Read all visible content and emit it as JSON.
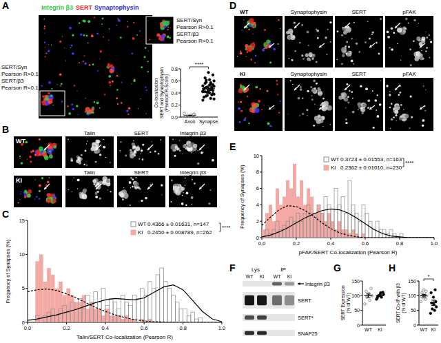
{
  "panels": {
    "labels": [
      "A",
      "B",
      "C",
      "D",
      "E",
      "F",
      "G",
      "H"
    ]
  },
  "panel_a": {
    "legend": [
      {
        "text": "Integrin β3",
        "color": "#2ecc40"
      },
      {
        "text": "SERT",
        "color": "#e8231f"
      },
      {
        "text": "Synaptophysin",
        "color": "#2b2bd6"
      }
    ],
    "inset_right": [
      "SERT/Syn",
      "Pearson R>0.1",
      "SERT/β3",
      "Pearson R>0.1"
    ],
    "inset_left": [
      "SERT/Syn",
      "Pearson R>0.1",
      "SERT/β3",
      "Pearson R<0.1"
    ]
  },
  "panel_b": {
    "rows": [
      "WT",
      "KI"
    ],
    "columns": [
      "Talin",
      "SERT",
      "Integrin β3"
    ]
  },
  "panel_d": {
    "rows": [
      "WT",
      "KI"
    ],
    "columns": [
      "Synaptophysin",
      "SERT",
      "pFAK"
    ]
  },
  "panel_f": {
    "groups": [
      "Lys",
      "IP"
    ],
    "lanes": [
      "WT",
      "KI",
      "WT",
      "KI"
    ],
    "bands": [
      "Integrin β3",
      "SERT",
      "SERT*",
      "SNAP25"
    ]
  },
  "chart_data": [
    {
      "type": "strip",
      "categories": [
        "Axon",
        "Synapse"
      ],
      "values": [
        [
          0.0,
          0.01,
          0.02,
          0.0,
          0.03,
          0.01,
          0.05,
          0.02,
          0.0,
          0.04,
          0.01,
          0.06,
          0.02,
          0.03,
          0.0,
          0.01
        ],
        [
          0.28,
          0.31,
          0.35,
          0.38,
          0.4,
          0.42,
          0.44,
          0.45,
          0.47,
          0.48,
          0.5,
          0.52,
          0.55,
          0.58,
          0.6,
          0.62,
          0.65,
          0.7,
          0.74,
          0.33,
          0.37,
          0.41,
          0.43,
          0.46,
          0.49,
          0.51,
          0.53,
          0.56,
          0.39,
          0.44,
          0.47,
          0.5,
          0.36,
          0.42,
          0.57,
          0.61,
          0.3,
          0.45,
          0.48,
          0.54
        ]
      ],
      "mean": [
        0.02,
        0.47
      ],
      "error": [
        0.005,
        0.02
      ],
      "y_label": [
        "Co-localization",
        "SERT and Synaptophysin",
        "(Pearson R-Score)"
      ],
      "ylim": [
        0,
        0.8
      ],
      "yticks": [
        {
          "value": 0,
          "label": "0.0"
        },
        {
          "value": 0.2,
          "label": "0.2"
        },
        {
          "value": 0.4,
          "label": "0.4"
        },
        {
          "value": 0.6,
          "label": "0.6"
        },
        {
          "value": 0.8,
          "label": "0.8"
        }
      ],
      "annotation": "****"
    },
    {
      "type": "histogram",
      "bins": [
        0.04,
        0.06,
        0.08,
        0.1,
        0.12,
        0.14,
        0.16,
        0.18,
        0.2,
        0.22,
        0.24,
        0.26,
        0.28,
        0.3,
        0.32,
        0.34,
        0.36,
        0.38,
        0.4,
        0.42,
        0.44,
        0.46,
        0.48,
        0.5,
        0.52,
        0.54,
        0.56,
        0.58,
        0.6,
        0.62,
        0.64,
        0.66,
        0.68,
        0.7,
        0.72,
        0.74,
        0.76,
        0.78,
        0.8,
        0.82,
        0.84,
        0.86,
        0.88,
        0.9
      ],
      "series": [
        {
          "name": "WT",
          "color": "#8c8c8c",
          "values": [
            1,
            0,
            1,
            1.5,
            2,
            1,
            2,
            2.5,
            1.5,
            3,
            2,
            3.5,
            2,
            4,
            3,
            4.5,
            3,
            5,
            2.5,
            3.5,
            3,
            2,
            4,
            3,
            2.5,
            4,
            3.5,
            5,
            4,
            6,
            5,
            7,
            8,
            6,
            5,
            4,
            3,
            2,
            2,
            1,
            1.5,
            0.5,
            0.7
          ],
          "stats": "0.4366 ± 0.01631, n=147",
          "fit": {
            "x": [
              0,
              0.05,
              0.1,
              0.15,
              0.2,
              0.25,
              0.3,
              0.35,
              0.4,
              0.45,
              0.5,
              0.55,
              0.6,
              0.65,
              0.7,
              0.75,
              0.8,
              0.85,
              0.9,
              0.95,
              1
            ],
            "values": [
              0.3,
              0.5,
              0.8,
              1.1,
              1.5,
              1.9,
              2.4,
              2.9,
              3.3,
              3.5,
              3.4,
              3.3,
              3.6,
              4.4,
              5.2,
              5.5,
              4.8,
              3.2,
              1.6,
              0.5,
              0.1
            ],
            "line_style": "solid"
          }
        },
        {
          "name": "KI",
          "color": "#f4a9a4",
          "values": [
            9,
            10,
            6,
            8,
            7,
            5,
            6,
            4,
            5,
            4,
            3,
            3,
            4,
            2,
            3,
            2,
            2,
            1,
            2,
            1,
            1,
            1,
            0.5,
            1,
            0.5,
            0.5,
            0,
            0.5,
            0,
            0.5,
            0,
            0,
            0,
            0,
            0,
            0,
            0,
            0,
            0,
            0,
            0,
            0,
            0
          ],
          "stats": "0.2450 ± 0.008789, n=262",
          "fit": {
            "x": [
              0,
              0.05,
              0.1,
              0.15,
              0.2,
              0.25,
              0.3,
              0.35,
              0.4,
              0.45,
              0.5,
              0.55,
              0.6,
              0.65,
              0.7,
              0.75,
              0.8,
              0.85,
              0.9,
              0.95,
              1
            ],
            "values": [
              4.5,
              4.8,
              4.9,
              4.7,
              4.2,
              3.6,
              2.9,
              2.2,
              1.6,
              1.1,
              0.7,
              0.4,
              0.2,
              0.1,
              0.05,
              0,
              0,
              0,
              0,
              0,
              0
            ],
            "line_style": "dashed"
          }
        }
      ],
      "x_label": "Talin/SERT Co-localization (Pearson R)",
      "y_label": "Frequency of Synapses (%)",
      "xlim": [
        0,
        1
      ],
      "xticks": [
        {
          "value": 0,
          "label": "0.0"
        },
        {
          "value": 0.2,
          "label": "0.2"
        },
        {
          "value": 0.4,
          "label": "0.4"
        },
        {
          "value": 0.6,
          "label": "0.6"
        },
        {
          "value": 0.8,
          "label": "0.8"
        },
        {
          "value": 1,
          "label": "1.0"
        }
      ],
      "ylim": [
        0,
        15
      ],
      "yticks": [
        0,
        5,
        10,
        15
      ],
      "annotation": "****"
    },
    {
      "type": "histogram",
      "bins": [
        0,
        0.02,
        0.04,
        0.06,
        0.08,
        0.1,
        0.12,
        0.14,
        0.16,
        0.18,
        0.2,
        0.22,
        0.24,
        0.26,
        0.28,
        0.3,
        0.32,
        0.34,
        0.36,
        0.38,
        0.4,
        0.42,
        0.44,
        0.46,
        0.48,
        0.5,
        0.52,
        0.54,
        0.56,
        0.58,
        0.6,
        0.62,
        0.64,
        0.66,
        0.68,
        0.7,
        0.72,
        0.74,
        0.76,
        0.78,
        0.8,
        0.82,
        0.84
      ],
      "series": [
        {
          "name": "WT",
          "color": "#8c8c8c",
          "values": [
            0,
            1,
            0.5,
            1,
            2,
            1,
            1.5,
            2,
            2.5,
            2,
            3,
            2,
            3,
            4,
            3,
            2.5,
            4,
            3,
            5,
            4,
            3.5,
            6,
            4,
            5,
            3,
            7,
            4,
            3,
            2,
            4,
            3,
            2,
            1,
            2,
            1,
            1,
            0.5,
            1,
            0.5,
            0,
            0.5,
            0
          ],
          "stats": "0.3723 ± 0.01553, n=163",
          "fit": {
            "x": [
              0,
              0.05,
              0.1,
              0.15,
              0.2,
              0.25,
              0.3,
              0.35,
              0.4,
              0.45,
              0.5,
              0.55,
              0.6,
              0.65,
              0.7,
              0.75,
              0.8,
              0.85,
              0.9,
              0.95,
              1
            ],
            "values": [
              0.1,
              0.3,
              0.7,
              1.2,
              1.8,
              2.4,
              2.9,
              3.3,
              3.5,
              3.4,
              3.0,
              2.4,
              1.7,
              1.0,
              0.5,
              0.2,
              0.1,
              0,
              0,
              0,
              0
            ],
            "line_style": "solid"
          }
        },
        {
          "name": "KI",
          "color": "#f4a9a4",
          "values": [
            1,
            3,
            4,
            2,
            6,
            4,
            5,
            7,
            6,
            9,
            5,
            7,
            4,
            6,
            5,
            3,
            4,
            3,
            2,
            3,
            2,
            1,
            2,
            1,
            1,
            0.5,
            1,
            0.5,
            0,
            0.5,
            0,
            0,
            0,
            0,
            0,
            0,
            0,
            0,
            0,
            0,
            0,
            0
          ],
          "stats": "0.2362 ± 0.01010, n=230",
          "fit": {
            "x": [
              0,
              0.05,
              0.1,
              0.15,
              0.2,
              0.25,
              0.3,
              0.35,
              0.4,
              0.45,
              0.5,
              0.55,
              0.6,
              0.65,
              0.7,
              0.75,
              0.8,
              0.85,
              0.9,
              0.95,
              1
            ],
            "values": [
              1.5,
              2.5,
              3.4,
              3.9,
              3.8,
              3.3,
              2.6,
              1.8,
              1.1,
              0.6,
              0.3,
              0.1,
              0,
              0,
              0,
              0,
              0,
              0,
              0,
              0,
              0
            ],
            "line_style": "dashed"
          }
        }
      ],
      "x_label": "pFAK/SERT Co-localization (Pearson R)",
      "y_label": "Frequency of Synapses (%)",
      "xlim": [
        0,
        1
      ],
      "xticks": [
        {
          "value": 0,
          "label": "0.0"
        },
        {
          "value": 0.2,
          "label": "0.2"
        },
        {
          "value": 0.4,
          "label": "0.4"
        },
        {
          "value": 0.6,
          "label": "0.6"
        },
        {
          "value": 0.8,
          "label": "0.8"
        },
        {
          "value": 1,
          "label": "1.0"
        }
      ],
      "ylim": [
        0,
        10
      ],
      "yticks": [
        0,
        2,
        4,
        6,
        8,
        10
      ],
      "annotation": "****"
    },
    {
      "type": "strip",
      "categories": [
        "WT",
        "KI"
      ],
      "values": [
        [
          72,
          85,
          95,
          100,
          108,
          115,
          125,
          102
        ],
        [
          88,
          95,
          100,
          105,
          110,
          98,
          112,
          104,
          92
        ]
      ],
      "mean": [
        100,
        100
      ],
      "error": [
        6,
        3
      ],
      "y_label": [
        "SERT Expression",
        "(% of WT)"
      ],
      "ylim": [
        0,
        150
      ],
      "yticks": [
        0,
        50,
        100,
        150
      ]
    },
    {
      "type": "strip",
      "categories": [
        "WT",
        "KI"
      ],
      "values": [
        [
          80,
          90,
          95,
          100,
          105,
          110,
          115,
          120,
          98,
          88
        ],
        [
          40,
          50,
          55,
          62,
          70,
          75,
          80,
          95,
          110,
          120
        ]
      ],
      "mean": [
        100,
        76
      ],
      "error": [
        4,
        9
      ],
      "y_label": [
        "SERT Co-IP with β3",
        "(% of WT)"
      ],
      "ylim": [
        0,
        150
      ],
      "yticks": [
        0,
        50,
        100,
        150
      ],
      "annotation": "*"
    }
  ]
}
